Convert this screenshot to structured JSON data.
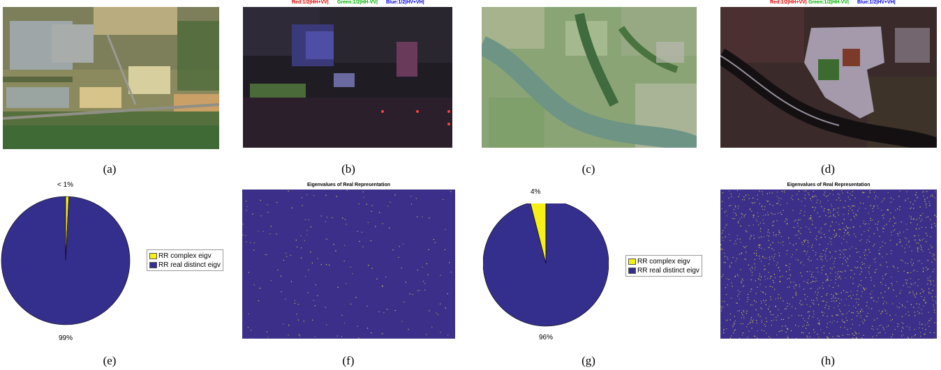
{
  "captions": [
    "(a)",
    "(b)",
    "(c)",
    "(d)",
    "(e)",
    "(f)",
    "(g)",
    "(h)"
  ],
  "sar_labels": {
    "red": "Red:1/2|HH+VV|",
    "green": "Green:1/2|HH-VV|",
    "blue": "Blue:1/2|HV+VH|"
  },
  "colors": {
    "complex": "#f5f016",
    "real": "#342e8c",
    "heat_bg": "#3b2f8a",
    "heat_dot": "#e8dc4a"
  },
  "chart_data": [
    {
      "type": "pie",
      "panel": "(e)",
      "labels": [
        "RR complex eigv",
        "RR real distinct eigv"
      ],
      "values": [
        0.8,
        99.2
      ],
      "slice_labels": [
        "< 1%",
        "99%"
      ],
      "legend": [
        "RR complex eigv",
        "RR real distinct eigv"
      ],
      "legend_placement": "right"
    },
    {
      "type": "heatmap",
      "panel": "(f)",
      "title": "Eigenvalues of Real Representation",
      "density": 0.012
    },
    {
      "type": "pie",
      "panel": "(g)",
      "labels": [
        "RR complex eigv",
        "RR real distinct eigv"
      ],
      "values": [
        4,
        96
      ],
      "slice_labels": [
        "4%",
        "96%"
      ],
      "legend": [
        "RR complex eigv",
        "RR real distinct eigv"
      ],
      "legend_placement": "right"
    },
    {
      "type": "heatmap",
      "panel": "(h)",
      "title": "Eigenvalues of Real Representation",
      "density": 0.09
    }
  ]
}
